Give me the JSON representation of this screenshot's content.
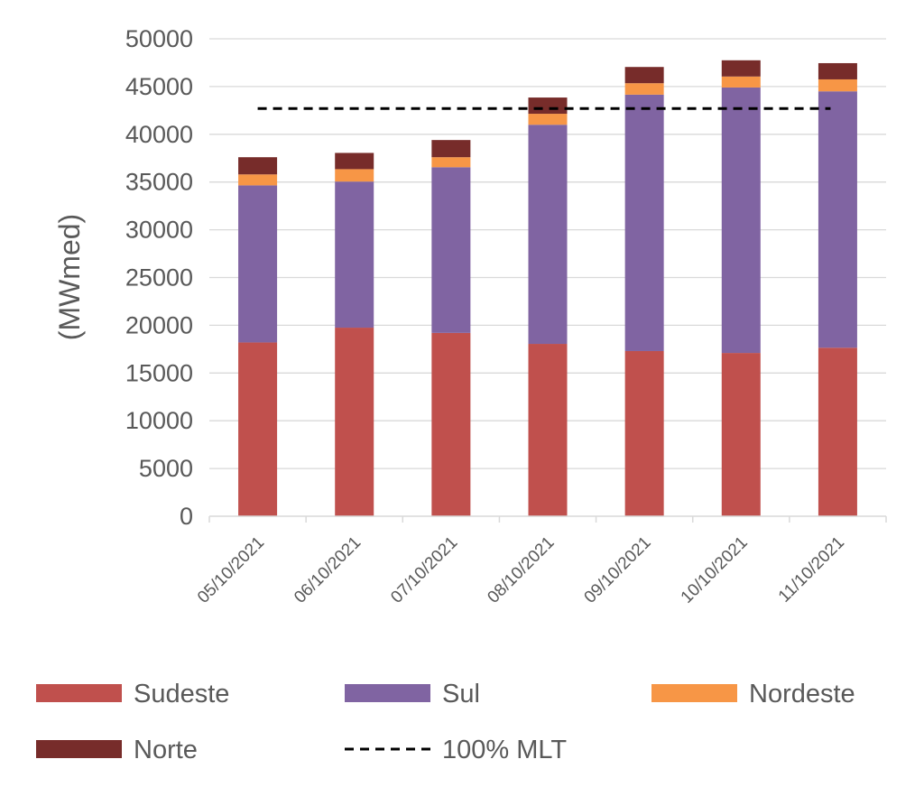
{
  "chart_data": {
    "type": "bar",
    "stacked": true,
    "title": "",
    "xlabel": "",
    "ylabel": "(MWmed)",
    "ylim": [
      0,
      50000
    ],
    "yticks": [
      0,
      5000,
      10000,
      15000,
      20000,
      25000,
      30000,
      35000,
      40000,
      45000,
      50000
    ],
    "grid": true,
    "legend_position": "bottom",
    "categories": [
      "05/10/2021",
      "06/10/2021",
      "07/10/2021",
      "08/10/2021",
      "09/10/2021",
      "10/10/2021",
      "11/10/2021"
    ],
    "series": [
      {
        "name": "Sudeste",
        "color": "#C0504D",
        "values": [
          18200,
          19750,
          19200,
          18050,
          17300,
          17100,
          17650
        ]
      },
      {
        "name": "Sul",
        "color": "#8064A2",
        "values": [
          16450,
          15300,
          17350,
          22950,
          26850,
          27800,
          26850
        ]
      },
      {
        "name": "Nordeste",
        "color": "#F79646",
        "values": [
          1150,
          1300,
          1050,
          1150,
          1200,
          1150,
          1250
        ]
      },
      {
        "name": "Norte",
        "color": "#772C2A",
        "values": [
          1800,
          1700,
          1800,
          1700,
          1700,
          1700,
          1700
        ]
      }
    ],
    "reference_line": {
      "name": "100% MLT",
      "value": 42700,
      "style": "dashed",
      "color": "#000000"
    }
  }
}
